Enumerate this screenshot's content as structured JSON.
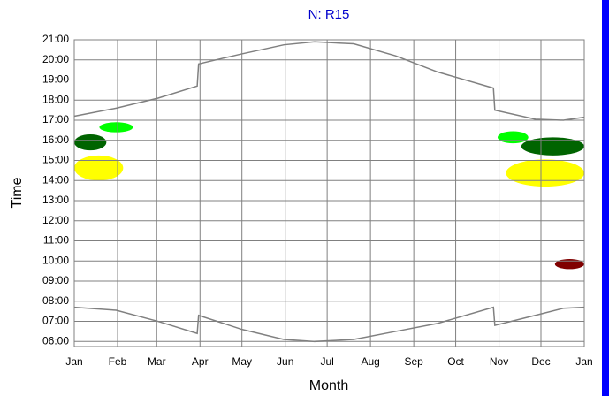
{
  "chart_data": {
    "type": "line",
    "title": "N: R15",
    "xlabel": "Month",
    "ylabel": "Time",
    "xlim": [
      0,
      365
    ],
    "ylim": [
      5.75,
      21
    ],
    "xticks": [
      {
        "value": 0,
        "label": "Jan"
      },
      {
        "value": 31,
        "label": "Feb"
      },
      {
        "value": 59,
        "label": "Mar"
      },
      {
        "value": 90,
        "label": "Apr"
      },
      {
        "value": 120,
        "label": "May"
      },
      {
        "value": 151,
        "label": "Jun"
      },
      {
        "value": 181,
        "label": "Jul"
      },
      {
        "value": 212,
        "label": "Aug"
      },
      {
        "value": 243,
        "label": "Sep"
      },
      {
        "value": 273,
        "label": "Oct"
      },
      {
        "value": 304,
        "label": "Nov"
      },
      {
        "value": 334,
        "label": "Dec"
      },
      {
        "value": 365,
        "label": "Jan"
      }
    ],
    "yticks": [
      {
        "value": 6,
        "label": "06:00"
      },
      {
        "value": 7,
        "label": "07:00"
      },
      {
        "value": 8,
        "label": "08:00"
      },
      {
        "value": 9,
        "label": "09:00"
      },
      {
        "value": 10,
        "label": "10:00"
      },
      {
        "value": 11,
        "label": "11:00"
      },
      {
        "value": 12,
        "label": "12:00"
      },
      {
        "value": 13,
        "label": "13:00"
      },
      {
        "value": 14,
        "label": "14:00"
      },
      {
        "value": 15,
        "label": "15:00"
      },
      {
        "value": 16,
        "label": "16:00"
      },
      {
        "value": 17,
        "label": "17:00"
      },
      {
        "value": 18,
        "label": "18:00"
      },
      {
        "value": 19,
        "label": "19:00"
      },
      {
        "value": 20,
        "label": "20:00"
      },
      {
        "value": 21,
        "label": "21:00"
      }
    ],
    "grid": true,
    "x": [
      0,
      30,
      60,
      88,
      89,
      120,
      150,
      172,
      200,
      230,
      260,
      300,
      301,
      330,
      350,
      365
    ],
    "series": [
      {
        "color": "#808080",
        "values": [
          17.2,
          17.6,
          18.1,
          18.7,
          19.8,
          20.3,
          20.75,
          20.9,
          20.8,
          20.2,
          19.4,
          18.6,
          17.5,
          17.05,
          17.0,
          17.15
        ]
      },
      {
        "color": "#808080",
        "values": [
          7.7,
          7.55,
          7.0,
          6.4,
          7.3,
          6.6,
          6.1,
          6.0,
          6.1,
          6.5,
          6.9,
          7.7,
          6.8,
          7.3,
          7.65,
          7.7
        ]
      }
    ],
    "shadow_periods": [
      {
        "color": "#ffff00",
        "x": [
          0,
          35
        ],
        "y": [
          14.0,
          15.25
        ]
      },
      {
        "color": "#006400",
        "x": [
          0,
          23
        ],
        "y": [
          15.5,
          16.3
        ]
      },
      {
        "color": "#00ff00",
        "x": [
          18,
          42
        ],
        "y": [
          16.4,
          16.9
        ]
      },
      {
        "color": "#00ff00",
        "x": [
          303,
          325
        ],
        "y": [
          15.85,
          16.45
        ]
      },
      {
        "color": "#006400",
        "x": [
          320,
          365
        ],
        "y": [
          15.25,
          16.15
        ]
      },
      {
        "color": "#ffff00",
        "x": [
          309,
          365
        ],
        "y": [
          13.7,
          15.05
        ]
      },
      {
        "color": "#800000",
        "x": [
          344,
          365
        ],
        "y": [
          9.6,
          10.1
        ]
      }
    ]
  }
}
